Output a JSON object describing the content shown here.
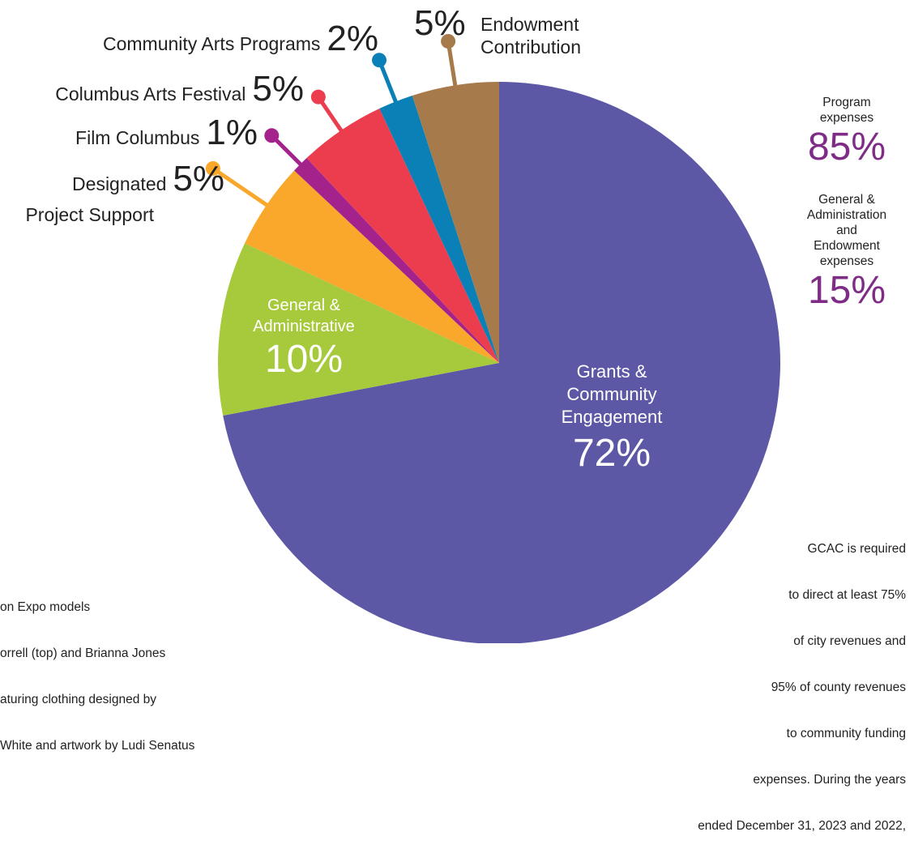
{
  "chart_data": {
    "type": "pie",
    "slices": [
      {
        "label": "Grants & Community Engagement",
        "value": 72,
        "display": "72%",
        "color": "#5c58a6"
      },
      {
        "label": "General & Administrative",
        "value": 10,
        "display": "10%",
        "color": "#a6ca3b"
      },
      {
        "label": "Designated Project Support",
        "value": 5,
        "display": "5%",
        "color": "#f9a82b"
      },
      {
        "label": "Film Columbus",
        "value": 1,
        "display": "1%",
        "color": "#a4228c"
      },
      {
        "label": "Columbus Arts Festival",
        "value": 5,
        "display": "5%",
        "color": "#ec3d4f"
      },
      {
        "label": "Community Arts Programs",
        "value": 2,
        "display": "2%",
        "color": "#0b80b6"
      },
      {
        "label": "Endowment Contribution",
        "value": 5,
        "display": "5%",
        "color": "#a77a4b"
      }
    ],
    "labels": {
      "grants_line1": "Grants &",
      "grants_line2": "Community",
      "grants_line3": "Engagement",
      "grants_pct": "72%",
      "ga_line1": "General &",
      "ga_line2": "Administrative",
      "ga_pct": "10%",
      "dps_line1": "Designated",
      "dps_line2": "Project Support",
      "dps_pct": "5%",
      "film": "Film Columbus",
      "film_pct": "1%",
      "festival": "Columbus Arts Festival",
      "festival_pct": "5%",
      "community": "Community Arts Programs",
      "community_pct": "2%",
      "endow_line1": "Endowment",
      "endow_line2": "Contribution",
      "endow_pct": "5%"
    }
  },
  "summary": {
    "program_line1": "Program",
    "program_line2": "expenses",
    "program_pct": "85%",
    "ga_line1": "General &",
    "ga_line2": "Administration",
    "ga_line3": "and",
    "ga_line4": "Endowment",
    "ga_line5": "expenses",
    "ga_pct": "15%"
  },
  "footnote": {
    "line1": "GCAC is required",
    "line2": "to direct at least 75%",
    "line3": "of city revenues and",
    "line4": "95% of county revenues",
    "line5": "to community funding",
    "line6": "expenses. During the years",
    "line7": "ended December 31, 2023 and 2022,"
  },
  "caption": {
    "line1": "on Expo models",
    "line2": "orrell (top) and Brianna Jones",
    "line3": "aturing clothing designed by",
    "line4": "White and artwork by Ludi Senatus"
  }
}
